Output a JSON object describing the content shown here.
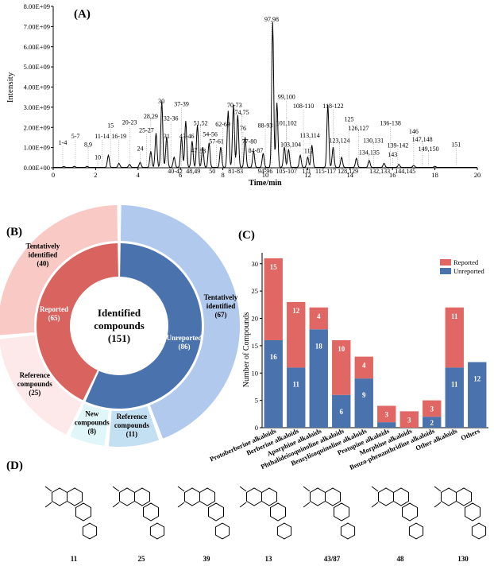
{
  "panel_labels": {
    "a": "(A)",
    "b": "(B)",
    "c": "(C)",
    "d": "(D)"
  },
  "chart_data": [
    {
      "type": "line",
      "panel": "(A)",
      "xlabel": "Time/min",
      "ylabel": "Intensity",
      "xlim": [
        0,
        20
      ],
      "ylim": [
        0,
        8000000000
      ],
      "x_ticks": [
        "0",
        "2",
        "4",
        "6",
        "8",
        "10",
        "12",
        "14",
        "16",
        "18",
        "20"
      ],
      "y_ticks": [
        "0.00E+00",
        "1.00E+09",
        "2.00E+09",
        "3.00E+09",
        "4.00E+09",
        "5.00E+09",
        "6.00E+09",
        "7.00E+09",
        "8.00E+09"
      ],
      "peaks": [
        {
          "x": 0.5,
          "y": 40000000.0
        },
        {
          "x": 1.0,
          "y": 50000000.0
        },
        {
          "x": 1.6,
          "y": 50000000.0
        },
        {
          "x": 2.6,
          "y": 600000000.0
        },
        {
          "x": 3.1,
          "y": 200000000.0
        },
        {
          "x": 3.6,
          "y": 150000000.0
        },
        {
          "x": 4.1,
          "y": 250000000.0
        },
        {
          "x": 4.6,
          "y": 800000000.0
        },
        {
          "x": 4.85,
          "y": 1700000000.0
        },
        {
          "x": 5.12,
          "y": 3300000000.0
        },
        {
          "x": 5.35,
          "y": 1500000000.0
        },
        {
          "x": 5.7,
          "y": 500000000.0
        },
        {
          "x": 6.05,
          "y": 1500000000.0
        },
        {
          "x": 6.25,
          "y": 2300000000.0
        },
        {
          "x": 6.55,
          "y": 1300000000.0
        },
        {
          "x": 6.8,
          "y": 2100000000.0
        },
        {
          "x": 7.05,
          "y": 1000000000.0
        },
        {
          "x": 7.35,
          "y": 1200000000.0
        },
        {
          "x": 7.9,
          "y": 1000000000.0
        },
        {
          "x": 8.25,
          "y": 2800000000.0
        },
        {
          "x": 8.5,
          "y": 3100000000.0
        },
        {
          "x": 8.7,
          "y": 2600000000.0
        },
        {
          "x": 9.05,
          "y": 1500000000.0
        },
        {
          "x": 9.45,
          "y": 800000000.0
        },
        {
          "x": 9.9,
          "y": 700000000.0
        },
        {
          "x": 10.35,
          "y": 7200000000.0
        },
        {
          "x": 10.55,
          "y": 3200000000.0
        },
        {
          "x": 10.9,
          "y": 1000000000.0
        },
        {
          "x": 11.1,
          "y": 900000000.0
        },
        {
          "x": 11.65,
          "y": 600000000.0
        },
        {
          "x": 12.0,
          "y": 500000000.0
        },
        {
          "x": 12.2,
          "y": 1100000000.0
        },
        {
          "x": 12.95,
          "y": 3100000000.0
        },
        {
          "x": 13.2,
          "y": 1000000000.0
        },
        {
          "x": 13.6,
          "y": 500000000.0
        },
        {
          "x": 14.3,
          "y": 450000000.0
        },
        {
          "x": 14.9,
          "y": 350000000.0
        },
        {
          "x": 15.6,
          "y": 200000000.0
        },
        {
          "x": 16.3,
          "y": 150000000.0
        },
        {
          "x": 17.0,
          "y": 100000000.0
        },
        {
          "x": 18.0,
          "y": 50000000.0
        }
      ],
      "annotations": [
        {
          "text": "1-4",
          "x": 0.45,
          "y": 1150000000.0
        },
        {
          "text": "5-7",
          "x": 1.05,
          "y": 1450000000.0
        },
        {
          "text": "8,9",
          "x": 1.65,
          "y": 1050000000.0
        },
        {
          "text": "10",
          "x": 2.1,
          "y": 420000000.0
        },
        {
          "text": "11-14",
          "x": 2.3,
          "y": 1450000000.0
        },
        {
          "text": "15",
          "x": 2.7,
          "y": 2000000000.0
        },
        {
          "text": "16-19",
          "x": 3.1,
          "y": 1450000000.0
        },
        {
          "text": "20-23",
          "x": 3.6,
          "y": 2150000000.0
        },
        {
          "text": "24",
          "x": 4.1,
          "y": 850000000.0
        },
        {
          "text": "25-27",
          "x": 4.4,
          "y": 1750000000.0
        },
        {
          "text": "28,29",
          "x": 4.6,
          "y": 2450000000.0
        },
        {
          "text": "30",
          "x": 5.1,
          "y": 3200000000.0
        },
        {
          "text": "31",
          "x": 5.35,
          "y": 1450000000.0
        },
        {
          "text": "32-36",
          "x": 5.55,
          "y": 2350000000.0
        },
        {
          "text": "37-39",
          "x": 6.05,
          "y": 3050000000.0
        },
        {
          "text": "40-42",
          "x": 5.75,
          "y": -280000000.0
        },
        {
          "text": "43-46",
          "x": 6.3,
          "y": 1450000000.0
        },
        {
          "text": "47",
          "x": 6.65,
          "y": 750000000.0
        },
        {
          "text": "48,49",
          "x": 6.6,
          "y": -280000000.0
        },
        {
          "text": "51,52",
          "x": 6.95,
          "y": 2100000000.0
        },
        {
          "text": "53",
          "x": 7.05,
          "y": 720000000.0
        },
        {
          "text": "54-56",
          "x": 7.4,
          "y": 1550000000.0
        },
        {
          "text": "50",
          "x": 7.5,
          "y": -280000000.0
        },
        {
          "text": "57-61",
          "x": 7.7,
          "y": 1200000000.0
        },
        {
          "text": "62-69",
          "x": 8.0,
          "y": 2050000000.0
        },
        {
          "text": "70-73",
          "x": 8.55,
          "y": 3000000000.0
        },
        {
          "text": "74,75",
          "x": 8.9,
          "y": 2650000000.0
        },
        {
          "text": "76",
          "x": 8.95,
          "y": 1850000000.0
        },
        {
          "text": "77-80",
          "x": 9.25,
          "y": 1200000000.0
        },
        {
          "text": "81-83",
          "x": 8.6,
          "y": -280000000.0
        },
        {
          "text": "84-87",
          "x": 9.55,
          "y": 750000000.0
        },
        {
          "text": "88-93",
          "x": 10.0,
          "y": 2000000000.0
        },
        {
          "text": "94-96",
          "x": 10.0,
          "y": -280000000.0
        },
        {
          "text": "97,98",
          "x": 10.3,
          "y": 7250000000.0
        },
        {
          "text": "99,100",
          "x": 11.0,
          "y": 3400000000.0
        },
        {
          "text": "101,102",
          "x": 11.0,
          "y": 2100000000.0
        },
        {
          "text": "103,104",
          "x": 11.2,
          "y": 1050000000.0
        },
        {
          "text": "105-107",
          "x": 11.0,
          "y": -280000000.0
        },
        {
          "text": "108-110",
          "x": 11.8,
          "y": 2950000000.0
        },
        {
          "text": "113,114",
          "x": 12.1,
          "y": 1500000000.0
        },
        {
          "text": "112",
          "x": 12.05,
          "y": 720000000.0
        },
        {
          "text": "111",
          "x": 11.95,
          "y": -280000000.0
        },
        {
          "text": "115-117",
          "x": 12.85,
          "y": -280000000.0
        },
        {
          "text": "118-122",
          "x": 13.2,
          "y": 2950000000.0
        },
        {
          "text": "123,124",
          "x": 13.5,
          "y": 1250000000.0
        },
        {
          "text": "125",
          "x": 13.95,
          "y": 2300000000.0
        },
        {
          "text": "126,127",
          "x": 14.4,
          "y": 1850000000.0
        },
        {
          "text": "128,129",
          "x": 13.9,
          "y": -280000000.0
        },
        {
          "text": "130,131",
          "x": 15.1,
          "y": 1250000000.0
        },
        {
          "text": "136-138",
          "x": 15.9,
          "y": 2100000000.0
        },
        {
          "text": "134,135",
          "x": 14.9,
          "y": 650000000.0
        },
        {
          "text": "132,133",
          "x": 15.4,
          "y": -280000000.0
        },
        {
          "text": "139-142",
          "x": 16.25,
          "y": 1000000000.0
        },
        {
          "text": "143",
          "x": 16.0,
          "y": 550000000.0
        },
        {
          "text": "146",
          "x": 17.0,
          "y": 1700000000.0
        },
        {
          "text": "147,148",
          "x": 17.4,
          "y": 1300000000.0
        },
        {
          "text": "149,150",
          "x": 17.7,
          "y": 820000000.0
        },
        {
          "text": "144,145",
          "x": 16.6,
          "y": -280000000.0
        },
        {
          "text": "151",
          "x": 19.0,
          "y": 1050000000.0
        }
      ]
    },
    {
      "type": "pie",
      "panel": "(B)",
      "center_title": "Identified compounds",
      "center_count": "(151)",
      "inner_ring": [
        {
          "name": "Reported",
          "label": "Reported",
          "count": "(65)",
          "value": 65,
          "color": "#d9635f"
        },
        {
          "name": "Unreported",
          "label": "Unreported",
          "count": "(86)",
          "value": 86,
          "color": "#4a72ad"
        }
      ],
      "outer_ring": [
        {
          "name": "Tentatively identified",
          "value": 40,
          "color": "#f8c9c5",
          "label_lines": [
            "Tentatively",
            "identified"
          ],
          "count": "(40)"
        },
        {
          "name": "Reference compounds",
          "value": 25,
          "color": "#fde8ea",
          "label_lines": [
            "Reference",
            "compounds"
          ],
          "count": "(25)"
        },
        {
          "name": "New compounds",
          "value": 8,
          "color": "#e0f6f8",
          "label_lines": [
            "New",
            "compounds"
          ],
          "count": "(8)"
        },
        {
          "name": "Reference compounds",
          "value": 11,
          "color": "#c3e0f2",
          "label_lines": [
            "Reference",
            "compounds"
          ],
          "count": "(11)"
        },
        {
          "name": "Tentatively identified",
          "value": 67,
          "color": "#b1c9ec",
          "label_lines": [
            "Tentatively",
            "identified"
          ],
          "count": "(67)"
        }
      ]
    },
    {
      "type": "bar",
      "panel": "(C)",
      "stacked": true,
      "ylabel": "Number of Compounds",
      "ylim": [
        0,
        32
      ],
      "y_ticks": [
        "0",
        "5",
        "10",
        "15",
        "20",
        "25",
        "30"
      ],
      "categories": [
        "Protoberberine alkaloids",
        "Berberine alkaloids",
        "Aporphine alkaloids",
        "Phthalideisoquinoline alkaloids",
        "Benzylisoquinoline alkaloids",
        "Protopine alkaloids",
        "Morphine alkaloids",
        "Benzo-phenanthridine alkaloids",
        "Other alkaloids",
        "Others"
      ],
      "legend_position": "top-right",
      "series": [
        {
          "name": "Unreported",
          "color": "#4a72ad",
          "values": [
            16,
            11,
            18,
            6,
            9,
            1,
            0,
            2,
            11,
            12
          ],
          "labels": [
            "16",
            "11",
            "18",
            "6",
            "9",
            "",
            "",
            "2",
            "11",
            "12"
          ]
        },
        {
          "name": "Reported",
          "color": "#e06763",
          "values": [
            15,
            12,
            4,
            10,
            4,
            3,
            3,
            3,
            11,
            0
          ],
          "labels": [
            "15",
            "12",
            "4",
            "10",
            "4",
            "3",
            "3",
            "3",
            "11",
            ""
          ]
        }
      ]
    }
  ],
  "structures": {
    "labels": [
      "11",
      "25",
      "39",
      "13",
      "43/87",
      "48",
      "130"
    ]
  }
}
